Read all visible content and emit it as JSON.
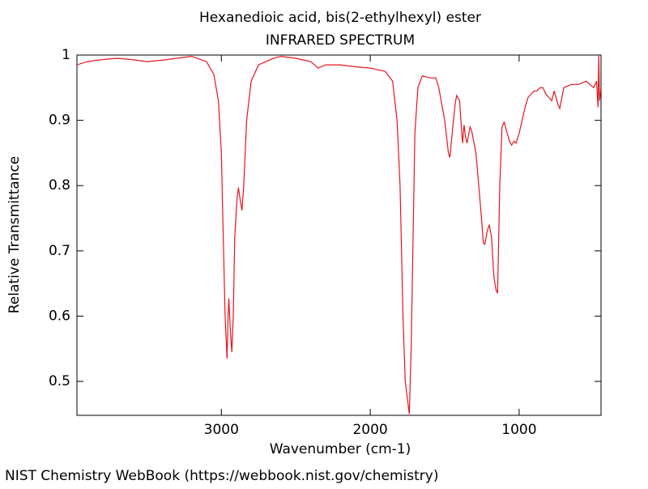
{
  "chart_data": {
    "type": "line",
    "title": "Hexanedioic acid, bis(2-ethylhexyl) ester",
    "subtitle": "INFRARED SPECTRUM",
    "xlabel": "Wavenumber (cm-1)",
    "ylabel": "Relative Transmittance",
    "footer": "NIST Chemistry WebBook (https://webbook.nist.gov/chemistry)",
    "color": "#e8141c",
    "xlim": [
      3970,
      450
    ],
    "ylim": [
      0.448,
      1
    ],
    "xticks": [
      3000,
      2000,
      1000
    ],
    "yticks": [
      0.5,
      0.6,
      0.7,
      0.8,
      0.9,
      1
    ],
    "x": [
      3970,
      3900,
      3800,
      3700,
      3600,
      3500,
      3400,
      3300,
      3200,
      3100,
      3050,
      3020,
      3000,
      2990,
      2975,
      2962,
      2955,
      2950,
      2940,
      2930,
      2920,
      2910,
      2895,
      2885,
      2875,
      2862,
      2850,
      2830,
      2800,
      2750,
      2700,
      2650,
      2600,
      2500,
      2400,
      2350,
      2300,
      2200,
      2100,
      2000,
      1900,
      1850,
      1820,
      1800,
      1780,
      1765,
      1738,
      1725,
      1710,
      1700,
      1680,
      1650,
      1600,
      1560,
      1540,
      1500,
      1475,
      1465,
      1450,
      1430,
      1420,
      1400,
      1385,
      1380,
      1370,
      1360,
      1350,
      1330,
      1320,
      1290,
      1260,
      1240,
      1230,
      1215,
      1200,
      1185,
      1170,
      1155,
      1145,
      1130,
      1115,
      1100,
      1080,
      1065,
      1050,
      1035,
      1020,
      1000,
      980,
      960,
      940,
      920,
      900,
      880,
      860,
      840,
      820,
      800,
      780,
      765,
      740,
      727,
      700,
      650,
      600,
      550,
      500,
      480,
      470,
      465,
      460,
      450
    ],
    "values": [
      0.985,
      0.99,
      0.993,
      0.995,
      0.993,
      0.99,
      0.992,
      0.995,
      0.998,
      0.99,
      0.97,
      0.93,
      0.85,
      0.75,
      0.6,
      0.535,
      0.6,
      0.627,
      0.58,
      0.545,
      0.6,
      0.72,
      0.78,
      0.797,
      0.78,
      0.762,
      0.8,
      0.9,
      0.96,
      0.985,
      0.99,
      0.995,
      0.998,
      0.995,
      0.99,
      0.98,
      0.985,
      0.985,
      0.982,
      0.98,
      0.975,
      0.96,
      0.9,
      0.8,
      0.6,
      0.5,
      0.45,
      0.55,
      0.75,
      0.88,
      0.95,
      0.968,
      0.965,
      0.965,
      0.95,
      0.9,
      0.85,
      0.843,
      0.88,
      0.925,
      0.938,
      0.93,
      0.88,
      0.865,
      0.893,
      0.875,
      0.865,
      0.89,
      0.885,
      0.85,
      0.77,
      0.712,
      0.71,
      0.73,
      0.74,
      0.72,
      0.66,
      0.64,
      0.635,
      0.8,
      0.89,
      0.897,
      0.88,
      0.868,
      0.862,
      0.868,
      0.865,
      0.88,
      0.9,
      0.92,
      0.935,
      0.94,
      0.945,
      0.945,
      0.95,
      0.95,
      0.94,
      0.935,
      0.93,
      0.945,
      0.925,
      0.918,
      0.95,
      0.955,
      0.955,
      0.96,
      0.95,
      0.96,
      0.92,
      1.0,
      0.93,
      0.95
    ]
  }
}
